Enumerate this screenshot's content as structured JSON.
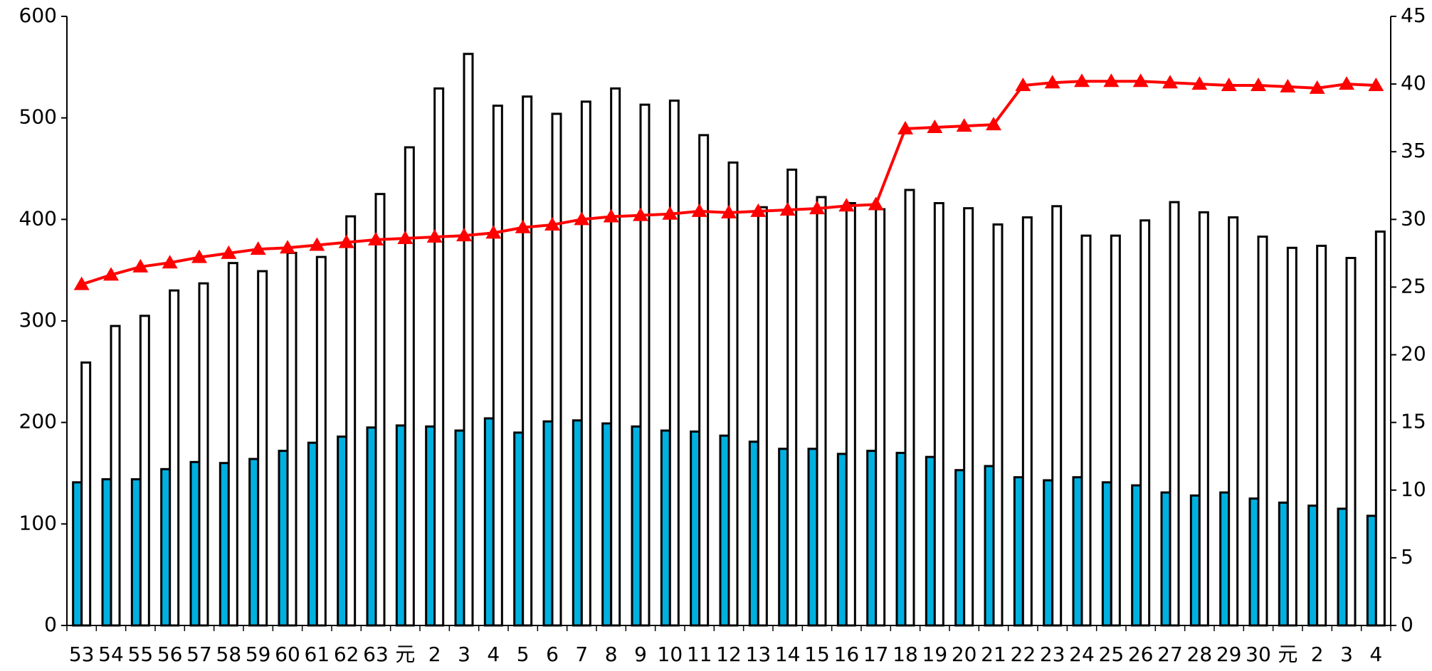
{
  "chart_data": {
    "type": "bar",
    "categories": [
      "53",
      "54",
      "55",
      "56",
      "57",
      "58",
      "59",
      "60",
      "61",
      "62",
      "63",
      "元",
      "2",
      "3",
      "4",
      "5",
      "6",
      "7",
      "8",
      "9",
      "10",
      "11",
      "12",
      "13",
      "14",
      "15",
      "16",
      "17",
      "18",
      "19",
      "20",
      "21",
      "22",
      "23",
      "24",
      "25",
      "26",
      "27",
      "28",
      "29",
      "30",
      "元",
      "2",
      "3",
      "4"
    ],
    "series": [
      {
        "type": "bar",
        "color": "#00b0e0",
        "values": [
          141,
          144,
          144,
          154,
          161,
          160,
          164,
          172,
          180,
          186,
          195,
          197,
          196,
          192,
          204,
          190,
          201,
          202,
          199,
          196,
          192,
          191,
          187,
          181,
          174,
          174,
          169,
          172,
          170,
          166,
          153,
          157,
          146,
          143,
          146,
          141,
          138,
          131,
          128,
          131,
          125,
          121,
          118,
          115,
          108
        ]
      },
      {
        "type": "bar",
        "color": "#ffffff",
        "values": [
          259,
          295,
          305,
          330,
          337,
          357,
          349,
          367,
          363,
          403,
          425,
          471,
          529,
          563,
          512,
          521,
          504,
          516,
          529,
          513,
          517,
          483,
          456,
          412,
          449,
          422,
          416,
          410,
          429,
          416,
          411,
          395,
          402,
          413,
          384,
          384,
          399,
          417,
          407,
          402,
          383,
          372,
          374,
          362,
          388
        ]
      },
      {
        "type": "line",
        "axis": "y2",
        "color": "#ff0000",
        "values": [
          25.2,
          25.9,
          26.5,
          26.8,
          27.2,
          27.5,
          27.8,
          27.9,
          28.1,
          28.3,
          28.5,
          28.6,
          28.7,
          28.8,
          29.0,
          29.4,
          29.6,
          30.0,
          30.2,
          30.3,
          30.4,
          30.6,
          30.5,
          30.6,
          30.7,
          30.8,
          31.0,
          31.1,
          36.7,
          36.8,
          36.9,
          37.0,
          39.9,
          40.1,
          40.2,
          40.2,
          40.2,
          40.1,
          40.0,
          39.9,
          39.9,
          39.8,
          39.7,
          40.0,
          39.9
        ]
      }
    ],
    "ylim": [
      0,
      600
    ],
    "yticks": [
      0,
      100,
      200,
      300,
      400,
      500,
      600
    ],
    "y2lim": [
      0,
      45
    ],
    "y2ticks": [
      0,
      5,
      10,
      15,
      20,
      25,
      30,
      35,
      40,
      45
    ]
  }
}
